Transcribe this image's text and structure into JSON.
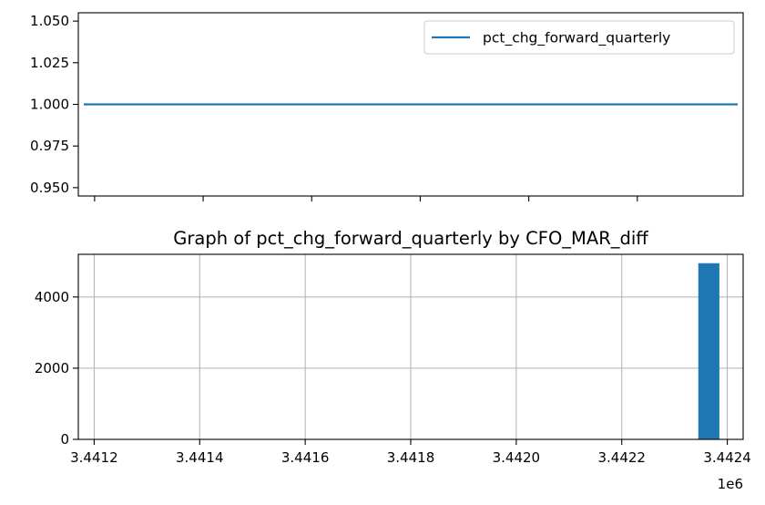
{
  "chart_data": [
    {
      "type": "line",
      "title": "",
      "xlabel": "",
      "ylabel": "",
      "x_shared_with_next": true,
      "xlim": [
        3441170,
        3442395
      ],
      "ylim": [
        0.945,
        1.055
      ],
      "yticks": [
        {
          "value": 0.95,
          "label": "0.950"
        },
        {
          "value": 0.975,
          "label": "0.975"
        },
        {
          "value": 1.0,
          "label": "1.000"
        },
        {
          "value": 1.025,
          "label": "1.025"
        },
        {
          "value": 1.05,
          "label": "1.050"
        }
      ],
      "xticks": [
        3441200,
        3441400,
        3441600,
        3441800,
        3442000,
        3442200
      ],
      "grid": false,
      "legend": {
        "position": "top-right",
        "entries": [
          "pct_chg_forward_quarterly"
        ]
      },
      "series": [
        {
          "name": "pct_chg_forward_quarterly",
          "color": "#1f77b4",
          "x": [
            3441180,
            3442385
          ],
          "y": [
            1.0,
            1.0
          ]
        }
      ]
    },
    {
      "type": "bar",
      "title": "Graph of pct_chg_forward_quarterly by CFO_MAR_diff",
      "xlabel": "",
      "ylabel": "",
      "xlim": [
        3441170,
        3442430
      ],
      "ylim": [
        0,
        5200
      ],
      "x_offset_label": "1e6",
      "xticks": [
        {
          "value": 3441200,
          "label": "3.4412"
        },
        {
          "value": 3441400,
          "label": "3.4414"
        },
        {
          "value": 3441600,
          "label": "3.4416"
        },
        {
          "value": 3441800,
          "label": "3.4418"
        },
        {
          "value": 3442000,
          "label": "3.4420"
        },
        {
          "value": 3442200,
          "label": "3.4422"
        },
        {
          "value": 3442400,
          "label": "3.4424"
        }
      ],
      "yticks": [
        {
          "value": 0,
          "label": "0"
        },
        {
          "value": 2000,
          "label": "2000"
        },
        {
          "value": 4000,
          "label": "4000"
        }
      ],
      "grid": true,
      "color": "#1f77b4",
      "bars": [
        {
          "x0": 3442345,
          "x1": 3442385,
          "value": 4950
        }
      ]
    }
  ]
}
